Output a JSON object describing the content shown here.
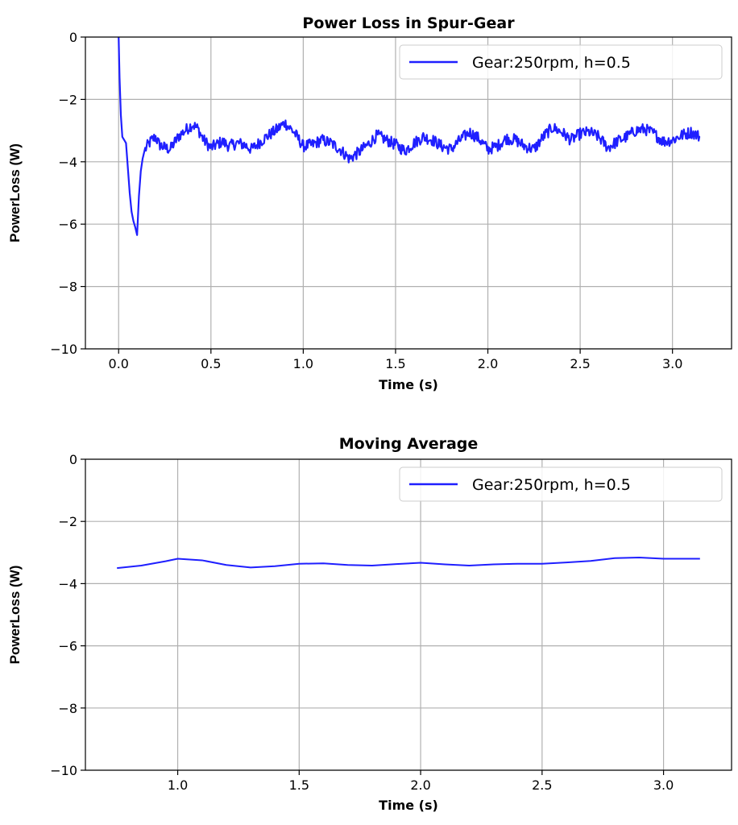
{
  "chart_data": [
    {
      "type": "line",
      "title": "Power Loss in Spur-Gear",
      "xlabel": "Time (s)",
      "ylabel": "PowerLoss (W)",
      "xlim": [
        -0.18,
        3.32
      ],
      "ylim": [
        -10,
        0
      ],
      "xticks": [
        0.0,
        0.5,
        1.0,
        1.5,
        2.0,
        2.5,
        3.0
      ],
      "xtick_labels": [
        "0.0",
        "0.5",
        "1.0",
        "1.5",
        "2.0",
        "2.5",
        "3.0"
      ],
      "yticks": [
        0,
        -2,
        -4,
        -6,
        -8,
        -10
      ],
      "ytick_labels": [
        "0",
        "−2",
        "−4",
        "−6",
        "−8",
        "−10"
      ],
      "grid": true,
      "legend_position": "upper-right",
      "series": [
        {
          "name": "Gear:250rpm, h=0.5",
          "color": "#1f1fff",
          "noisy": true,
          "x": [
            0.0,
            0.005,
            0.012,
            0.02,
            0.03,
            0.04,
            0.05,
            0.06,
            0.07,
            0.08,
            0.09,
            0.1,
            0.11,
            0.12,
            0.13,
            0.14,
            0.16,
            0.18,
            0.2,
            0.22,
            0.25,
            0.28,
            0.3,
            0.33,
            0.36,
            0.4,
            0.43,
            0.46,
            0.5,
            0.53,
            0.56,
            0.6,
            0.64,
            0.68,
            0.72,
            0.76,
            0.8,
            0.85,
            0.9,
            0.95,
            1.0,
            1.05,
            1.1,
            1.15,
            1.2,
            1.25,
            1.3,
            1.35,
            1.4,
            1.45,
            1.5,
            1.55,
            1.6,
            1.65,
            1.7,
            1.75,
            1.8,
            1.85,
            1.9,
            1.95,
            2.0,
            2.05,
            2.1,
            2.15,
            2.2,
            2.25,
            2.3,
            2.35,
            2.4,
            2.45,
            2.5,
            2.55,
            2.6,
            2.65,
            2.7,
            2.75,
            2.8,
            2.85,
            2.9,
            2.95,
            3.0,
            3.05,
            3.1,
            3.15
          ],
          "y": [
            0.0,
            -1.3,
            -2.5,
            -3.2,
            -3.3,
            -3.4,
            -4.2,
            -5.0,
            -5.6,
            -5.9,
            -6.1,
            -6.35,
            -5.1,
            -4.3,
            -3.9,
            -3.65,
            -3.45,
            -3.3,
            -3.2,
            -3.45,
            -3.55,
            -3.6,
            -3.4,
            -3.15,
            -3.0,
            -2.8,
            -2.95,
            -3.3,
            -3.55,
            -3.45,
            -3.35,
            -3.5,
            -3.4,
            -3.45,
            -3.6,
            -3.4,
            -3.2,
            -3.0,
            -2.75,
            -3.05,
            -3.5,
            -3.45,
            -3.3,
            -3.4,
            -3.6,
            -3.9,
            -3.7,
            -3.45,
            -3.15,
            -3.3,
            -3.45,
            -3.65,
            -3.4,
            -3.2,
            -3.3,
            -3.5,
            -3.6,
            -3.3,
            -3.05,
            -3.25,
            -3.6,
            -3.5,
            -3.25,
            -3.3,
            -3.5,
            -3.6,
            -3.2,
            -2.9,
            -3.05,
            -3.3,
            -3.1,
            -3.05,
            -3.2,
            -3.55,
            -3.35,
            -3.2,
            -3.0,
            -2.95,
            -3.1,
            -3.35,
            -3.3,
            -3.15,
            -3.05,
            -3.2
          ]
        }
      ]
    },
    {
      "type": "line",
      "title": "Moving Average",
      "xlabel": "Time (s)",
      "ylabel": "PowerLoss (W)",
      "xlim": [
        0.62,
        3.28
      ],
      "ylim": [
        -10,
        0
      ],
      "xticks": [
        1.0,
        1.5,
        2.0,
        2.5,
        3.0
      ],
      "xtick_labels": [
        "1.0",
        "1.5",
        "2.0",
        "2.5",
        "3.0"
      ],
      "yticks": [
        0,
        -2,
        -4,
        -6,
        -8,
        -10
      ],
      "ytick_labels": [
        "0",
        "−2",
        "−4",
        "−6",
        "−8",
        "−10"
      ],
      "grid": true,
      "legend_position": "upper-right",
      "series": [
        {
          "name": "Gear:250rpm, h=0.5",
          "color": "#1f1fff",
          "noisy": false,
          "x": [
            0.75,
            0.85,
            0.95,
            1.0,
            1.1,
            1.2,
            1.3,
            1.4,
            1.5,
            1.6,
            1.7,
            1.8,
            1.9,
            2.0,
            2.1,
            2.2,
            2.3,
            2.4,
            2.5,
            2.6,
            2.7,
            2.8,
            2.9,
            3.0,
            3.1,
            3.15
          ],
          "y": [
            -3.5,
            -3.42,
            -3.28,
            -3.2,
            -3.25,
            -3.4,
            -3.48,
            -3.44,
            -3.36,
            -3.35,
            -3.4,
            -3.42,
            -3.37,
            -3.33,
            -3.38,
            -3.42,
            -3.38,
            -3.36,
            -3.36,
            -3.32,
            -3.27,
            -3.18,
            -3.16,
            -3.2,
            -3.2,
            -3.2
          ]
        }
      ]
    }
  ]
}
